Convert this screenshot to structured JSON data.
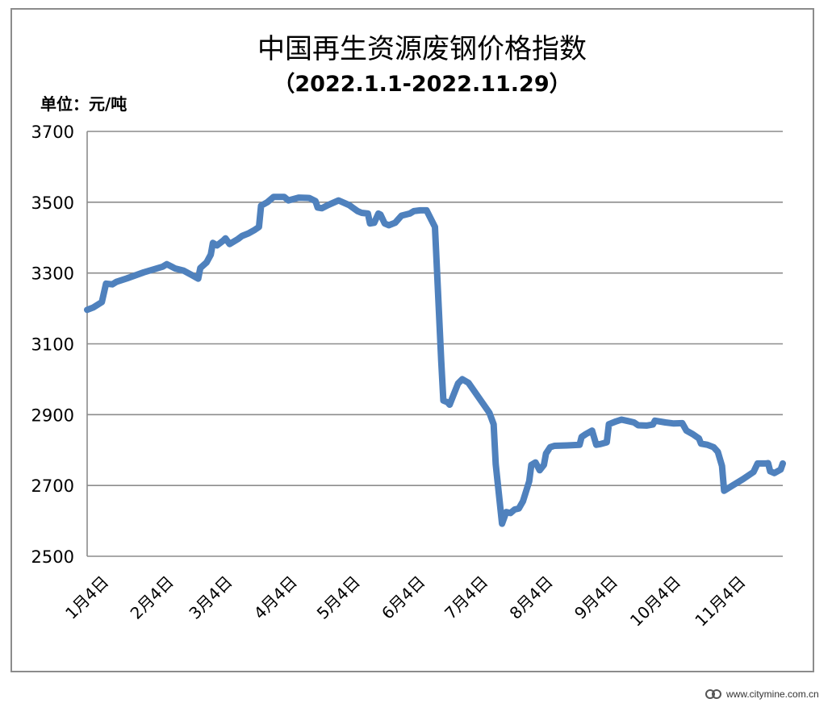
{
  "colors": {
    "series": "#4f81bd",
    "grid": "#8c8c8c"
  },
  "chart_data": {
    "type": "line",
    "title": "中国再生资源废钢价格指数",
    "subtitle": "（2022.1.1-2022.11.29）",
    "unit_label": "单位：元/吨",
    "ylim": [
      2500,
      3700
    ],
    "yticks": [
      2500,
      2700,
      2900,
      3100,
      3300,
      3500,
      3700
    ],
    "ytick_labels": [
      "2500",
      "2700",
      "2900",
      "3100",
      "3300",
      "3500",
      "3700"
    ],
    "grid": true,
    "legend": "none",
    "xlim": [
      "2022-01-01",
      "2022-11-29"
    ],
    "xticks": [
      {
        "date": "2022-01-04",
        "label": "1月4日"
      },
      {
        "date": "2022-02-04",
        "label": "2月4日"
      },
      {
        "date": "2022-03-04",
        "label": "3月4日"
      },
      {
        "date": "2022-04-04",
        "label": "4月4日"
      },
      {
        "date": "2022-05-04",
        "label": "5月4日"
      },
      {
        "date": "2022-06-04",
        "label": "6月4日"
      },
      {
        "date": "2022-07-04",
        "label": "7月4日"
      },
      {
        "date": "2022-08-04",
        "label": "8月4日"
      },
      {
        "date": "2022-09-04",
        "label": "9月4日"
      },
      {
        "date": "2022-10-04",
        "label": "10月4日"
      },
      {
        "date": "2022-11-04",
        "label": "11月4日"
      }
    ],
    "series": [
      {
        "values": [
          [
            "2022-01-01",
            3196
          ],
          [
            "2022-01-04",
            3203
          ],
          [
            "2022-01-08",
            3218
          ],
          [
            "2022-01-10",
            3270
          ],
          [
            "2022-01-13",
            3268
          ],
          [
            "2022-01-15",
            3275
          ],
          [
            "2022-01-20",
            3285
          ],
          [
            "2022-01-28",
            3302
          ],
          [
            "2022-02-06",
            3318
          ],
          [
            "2022-02-08",
            3325
          ],
          [
            "2022-02-10",
            3319
          ],
          [
            "2022-02-12",
            3313
          ],
          [
            "2022-02-16",
            3307
          ],
          [
            "2022-02-20",
            3294
          ],
          [
            "2022-02-23",
            3284
          ],
          [
            "2022-02-24",
            3314
          ],
          [
            "2022-02-27",
            3330
          ],
          [
            "2022-03-01",
            3352
          ],
          [
            "2022-03-02",
            3385
          ],
          [
            "2022-03-04",
            3378
          ],
          [
            "2022-03-07",
            3392
          ],
          [
            "2022-03-08",
            3398
          ],
          [
            "2022-03-10",
            3382
          ],
          [
            "2022-03-14",
            3396
          ],
          [
            "2022-03-16",
            3405
          ],
          [
            "2022-03-19",
            3412
          ],
          [
            "2022-03-22",
            3422
          ],
          [
            "2022-03-24",
            3430
          ],
          [
            "2022-03-25",
            3490
          ],
          [
            "2022-03-28",
            3500
          ],
          [
            "2022-03-31",
            3515
          ],
          [
            "2022-04-05",
            3515
          ],
          [
            "2022-04-07",
            3505
          ],
          [
            "2022-04-12",
            3513
          ],
          [
            "2022-04-17",
            3512
          ],
          [
            "2022-04-20",
            3503
          ],
          [
            "2022-04-21",
            3485
          ],
          [
            "2022-04-23",
            3483
          ],
          [
            "2022-04-26",
            3492
          ],
          [
            "2022-05-01",
            3505
          ],
          [
            "2022-05-06",
            3492
          ],
          [
            "2022-05-10",
            3475
          ],
          [
            "2022-05-12",
            3470
          ],
          [
            "2022-05-15",
            3468
          ],
          [
            "2022-05-16",
            3440
          ],
          [
            "2022-05-18",
            3442
          ],
          [
            "2022-05-20",
            3468
          ],
          [
            "2022-05-21",
            3465
          ],
          [
            "2022-05-23",
            3440
          ],
          [
            "2022-05-25",
            3435
          ],
          [
            "2022-05-28",
            3442
          ],
          [
            "2022-05-31",
            3462
          ],
          [
            "2022-06-04",
            3468
          ],
          [
            "2022-06-06",
            3475
          ],
          [
            "2022-06-09",
            3477
          ],
          [
            "2022-06-12",
            3477
          ],
          [
            "2022-06-16",
            3430
          ],
          [
            "2022-06-19",
            3050
          ],
          [
            "2022-06-20",
            2940
          ],
          [
            "2022-06-22",
            2935
          ],
          [
            "2022-06-23",
            2928
          ],
          [
            "2022-06-27",
            2988
          ],
          [
            "2022-06-29",
            3000
          ],
          [
            "2022-07-02",
            2990
          ],
          [
            "2022-07-12",
            2905
          ],
          [
            "2022-07-14",
            2873
          ],
          [
            "2022-07-15",
            2760
          ],
          [
            "2022-07-18",
            2592
          ],
          [
            "2022-07-20",
            2625
          ],
          [
            "2022-07-22",
            2622
          ],
          [
            "2022-07-24",
            2632
          ],
          [
            "2022-07-26",
            2635
          ],
          [
            "2022-07-28",
            2655
          ],
          [
            "2022-07-31",
            2712
          ],
          [
            "2022-08-01",
            2758
          ],
          [
            "2022-08-03",
            2765
          ],
          [
            "2022-08-05",
            2743
          ],
          [
            "2022-08-07",
            2758
          ],
          [
            "2022-08-08",
            2790
          ],
          [
            "2022-08-10",
            2808
          ],
          [
            "2022-08-12",
            2812
          ],
          [
            "2022-08-18",
            2813
          ],
          [
            "2022-08-24",
            2815
          ],
          [
            "2022-08-25",
            2837
          ],
          [
            "2022-08-27",
            2845
          ],
          [
            "2022-08-30",
            2855
          ],
          [
            "2022-09-01",
            2815
          ],
          [
            "2022-09-03",
            2817
          ],
          [
            "2022-09-06",
            2822
          ],
          [
            "2022-09-07",
            2873
          ],
          [
            "2022-09-10",
            2880
          ],
          [
            "2022-09-13",
            2886
          ],
          [
            "2022-09-16",
            2882
          ],
          [
            "2022-09-19",
            2878
          ],
          [
            "2022-09-21",
            2870
          ],
          [
            "2022-09-25",
            2869
          ],
          [
            "2022-09-28",
            2872
          ],
          [
            "2022-09-29",
            2883
          ],
          [
            "2022-10-04",
            2878
          ],
          [
            "2022-10-08",
            2875
          ],
          [
            "2022-10-12",
            2876
          ],
          [
            "2022-10-14",
            2855
          ],
          [
            "2022-10-17",
            2845
          ],
          [
            "2022-10-20",
            2833
          ],
          [
            "2022-10-21",
            2818
          ],
          [
            "2022-10-24",
            2815
          ],
          [
            "2022-10-27",
            2808
          ],
          [
            "2022-10-29",
            2795
          ],
          [
            "2022-10-31",
            2755
          ],
          [
            "2022-11-01",
            2685
          ],
          [
            "2022-11-05",
            2700
          ],
          [
            "2022-11-10",
            2718
          ],
          [
            "2022-11-15",
            2738
          ],
          [
            "2022-11-17",
            2762
          ],
          [
            "2022-11-21",
            2762
          ],
          [
            "2022-11-22",
            2763
          ],
          [
            "2022-11-23",
            2740
          ],
          [
            "2022-11-25",
            2735
          ],
          [
            "2022-11-28",
            2745
          ],
          [
            "2022-11-29",
            2762
          ]
        ]
      }
    ]
  },
  "watermark": {
    "text": "www.citymine.com.cn"
  }
}
